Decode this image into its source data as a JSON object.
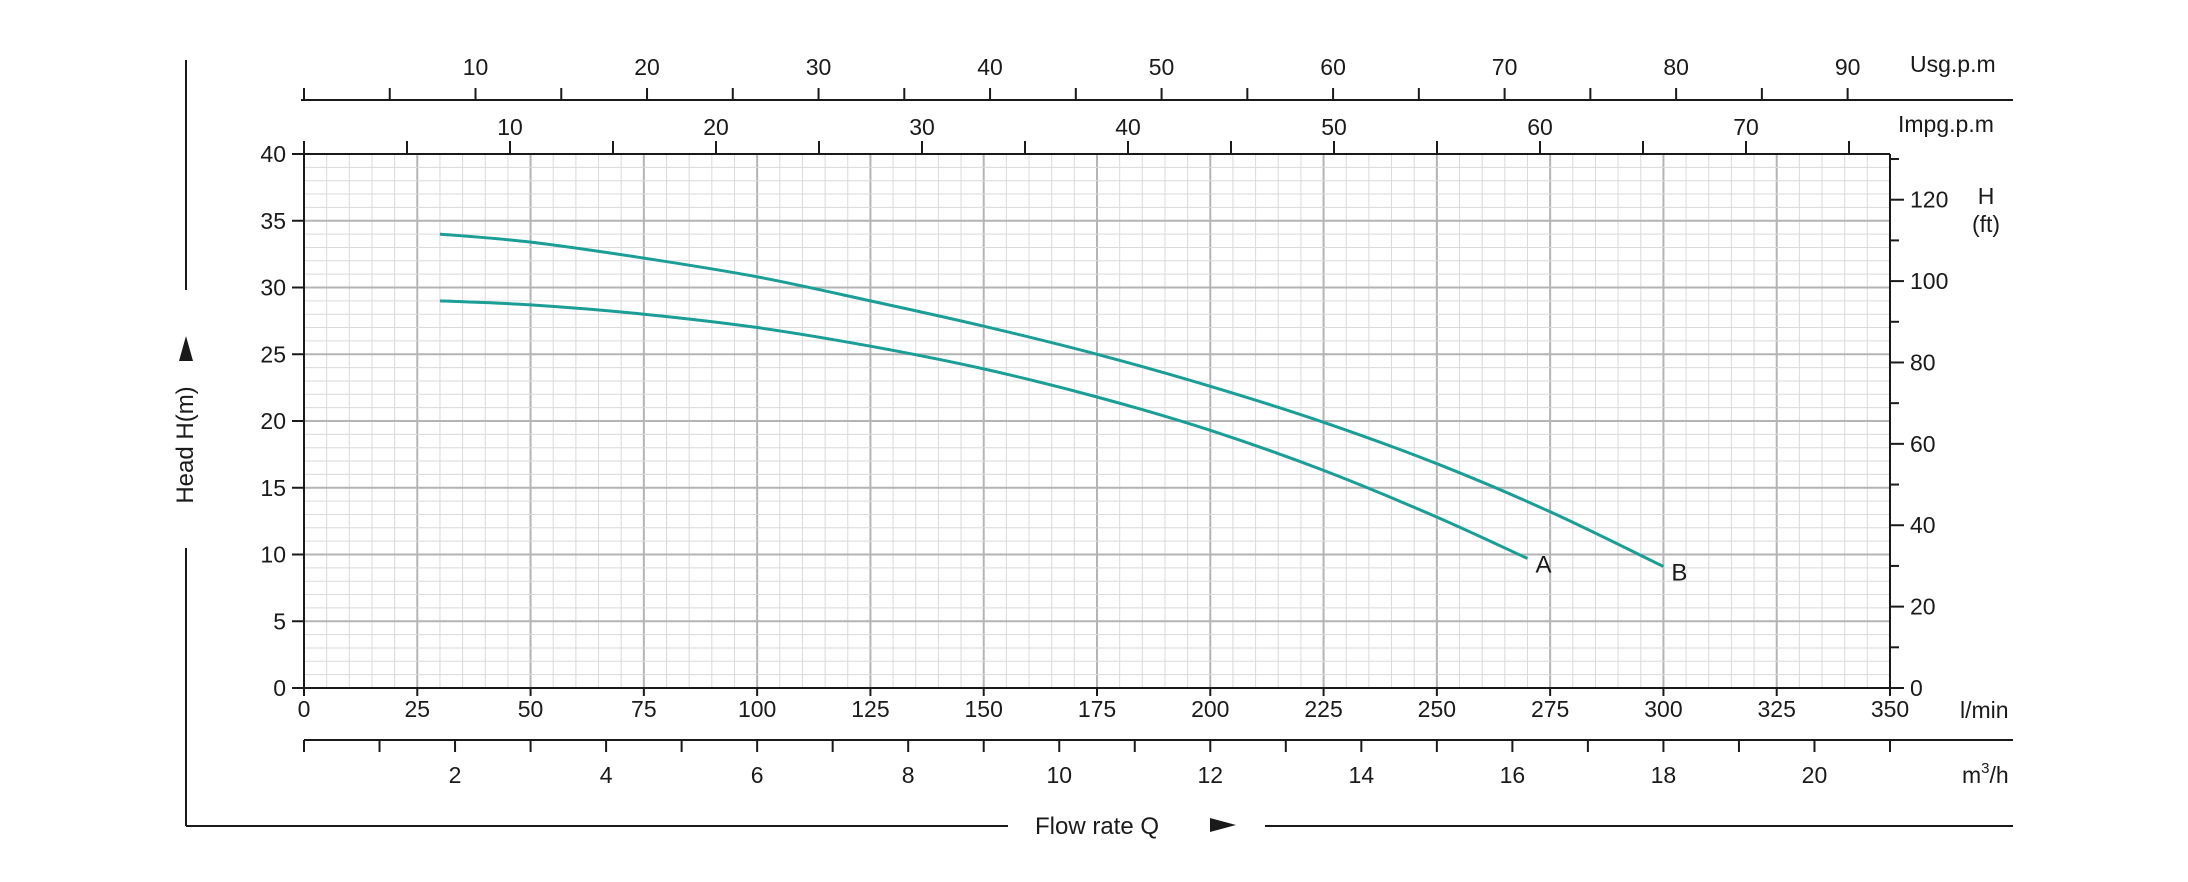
{
  "chart_data": {
    "type": "line",
    "title": "",
    "xlabel": "Flow rate Q",
    "ylabel": "Head H(m)",
    "x_unit": "l/min",
    "y_unit": "m",
    "xlim": [
      0,
      350
    ],
    "ylim": [
      0,
      40
    ],
    "grid": true,
    "x_ticks": [
      0,
      25,
      50,
      75,
      100,
      125,
      150,
      175,
      200,
      225,
      250,
      275,
      300,
      325,
      350
    ],
    "y_ticks": [
      0,
      5,
      10,
      15,
      20,
      25,
      30,
      35,
      40
    ],
    "secondary_axes": {
      "right_ft": {
        "title_line1": "H",
        "title_line2": "(ft)",
        "ticks": [
          0,
          20,
          40,
          60,
          80,
          100,
          120
        ],
        "meters_per_unit": 0.3048
      },
      "bottom_m3h": {
        "unit": "m³/h",
        "unit_base": "m",
        "unit_sup": "3",
        "unit_tail": "/h",
        "ticks": [
          2,
          4,
          6,
          8,
          10,
          12,
          14,
          16,
          18,
          20
        ],
        "lmin_per_unit": 16.6667
      },
      "top_usgpm": {
        "unit": "Usg.p.m",
        "ticks": [
          10,
          20,
          30,
          40,
          50,
          60,
          70,
          80,
          90
        ],
        "lmin_per_unit": 3.785
      },
      "top_impgpm": {
        "unit": "Impg.p.m",
        "ticks": [
          10,
          20,
          30,
          40,
          50,
          60,
          70
        ],
        "lmin_per_unit": 4.546
      }
    },
    "series": [
      {
        "name": "A",
        "color": "#1a9e96",
        "x": [
          30,
          50,
          75,
          100,
          125,
          150,
          175,
          200,
          225,
          250,
          270
        ],
        "y": [
          29.0,
          28.7,
          28.0,
          27.0,
          25.6,
          23.9,
          21.8,
          19.3,
          16.3,
          12.8,
          9.7
        ]
      },
      {
        "name": "B",
        "color": "#1a9e96",
        "x": [
          30,
          50,
          75,
          100,
          125,
          150,
          175,
          200,
          225,
          250,
          275,
          300
        ],
        "y": [
          34.0,
          33.4,
          32.2,
          30.8,
          29.0,
          27.1,
          25.0,
          22.6,
          19.9,
          16.8,
          13.2,
          9.1
        ]
      }
    ]
  }
}
